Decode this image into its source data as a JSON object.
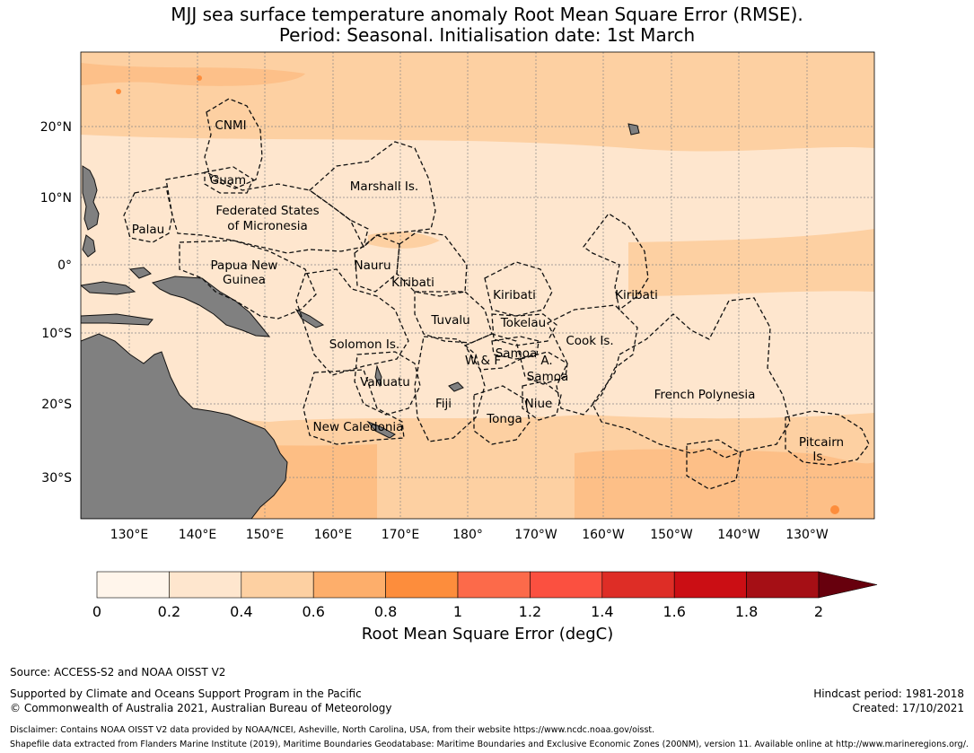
{
  "title": {
    "line1": "MJJ sea surface temperature anomaly Root Mean Square Error (RMSE).",
    "line2": "Period: Seasonal. Initialisation date: 1st March"
  },
  "map": {
    "lat_labels": [
      "20°N",
      "10°N",
      "0°",
      "10°S",
      "20°S",
      "30°S"
    ],
    "lon_labels": [
      "130°E",
      "140°E",
      "150°E",
      "160°E",
      "170°E",
      "180°",
      "170°W",
      "160°W",
      "150°W",
      "140°W",
      "130°W"
    ],
    "land_color": "#808080",
    "region_labels": {
      "cnmi": "CNMI",
      "guam": "Guam",
      "marshall": "Marshall Is.",
      "fsm1": "Federated States",
      "fsm2": "of Micronesia",
      "palau": "Palau",
      "png1": "Papua New",
      "png2": "Guinea",
      "nauru": "Nauru",
      "kiribati_w": "Kiribati",
      "kiribati_c": "Kiribati",
      "kiribati_e": "Kiribati",
      "tuvalu": "Tuvalu",
      "tokelau": "Tokelau",
      "solomon": "Solomon Is.",
      "samoa": "Samoa",
      "wf": "W & F",
      "asamoa1": "A.",
      "asamoa2": "Samoa",
      "cook": "Cook Is.",
      "vanuatu": "Vanuatu",
      "fiji": "Fiji",
      "niue": "Niue",
      "tonga": "Tonga",
      "frpoly": "French Polynesia",
      "newcal": "New Caledonia",
      "pitcairn1": "Pitcairn",
      "pitcairn2": "Is."
    }
  },
  "colorbar": {
    "ticks": [
      "0",
      "0.2",
      "0.4",
      "0.6",
      "0.8",
      "1",
      "1.2",
      "1.4",
      "1.6",
      "1.8",
      "2"
    ],
    "colors": [
      "#fff5eb",
      "#fee6ce",
      "#fdd0a2",
      "#fdae6b",
      "#fd8d3c",
      "#fc6a4a",
      "#fb5040",
      "#de2d26",
      "#cb0e14",
      "#a50f15",
      "#67000d"
    ],
    "label": "Root Mean Square Error (degC)"
  },
  "footer": {
    "source": "Source: ACCESS-S2 and NOAA OISST V2",
    "supported": "Supported by Climate and Oceans Support Program in the Pacific",
    "copyright": "© Commonwealth of Australia 2021, Australian Bureau of Meteorology",
    "hindcast": "Hindcast period: 1981-2018",
    "created": "Created: 17/10/2021",
    "disclaimer": "Disclaimer: Contains NOAA OISST V2 data provided by NOAA/NCEI, Asheville, North Carolina, USA, from their website https://www.ncdc.noaa.gov/oisst.",
    "shapefile": "Shapefile data extracted from Flanders Marine Institute (2019), Maritime Boundaries Geodatabase: Maritime Boundaries and Exclusive Economic Zones (200NM), version 11. Available online at http://www.marineregions.org/."
  }
}
